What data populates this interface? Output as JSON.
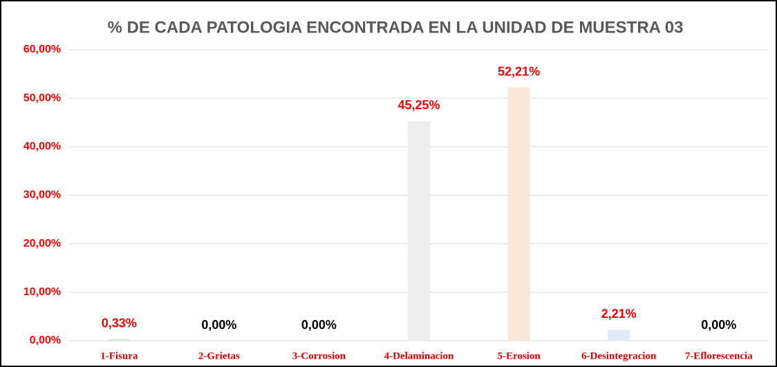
{
  "chart_data": {
    "type": "bar",
    "title": "% DE CADA PATOLOGIA ENCONTRADA EN LA UNIDAD DE MUESTRA 03",
    "categories": [
      "1-Fisura",
      "2-Grietas",
      "3-Corrosion",
      "4-Delaminacion",
      "5-Erosion",
      "6-Desintegracion",
      "7-Eflorescencia"
    ],
    "values": [
      0.33,
      0,
      0,
      45.25,
      52.21,
      2.21,
      0
    ],
    "value_labels": [
      "0,33%",
      "0,00%",
      "0,00%",
      "45,25%",
      "52,21%",
      "2,21%",
      "0,00%"
    ],
    "colors": [
      "#d9ead3",
      "#dbe7f5",
      "#fde3d3",
      "#ededed",
      "#fbe5d6",
      "#deebf7",
      "#e2efda"
    ],
    "value_label_colors": [
      "#ff0000",
      "#000000",
      "#000000",
      "#ff0000",
      "#ff0000",
      "#ff0000",
      "#000000"
    ],
    "ylim": [
      0,
      60
    ],
    "yticks": [
      {
        "value": 0,
        "label": "0,00%"
      },
      {
        "value": 10,
        "label": "10,00%"
      },
      {
        "value": 20,
        "label": "20,00%"
      },
      {
        "value": 30,
        "label": "30,00%"
      },
      {
        "value": 40,
        "label": "40,00%"
      },
      {
        "value": 50,
        "label": "50,00%"
      },
      {
        "value": 60,
        "label": "60,00%"
      }
    ],
    "grid": true
  }
}
